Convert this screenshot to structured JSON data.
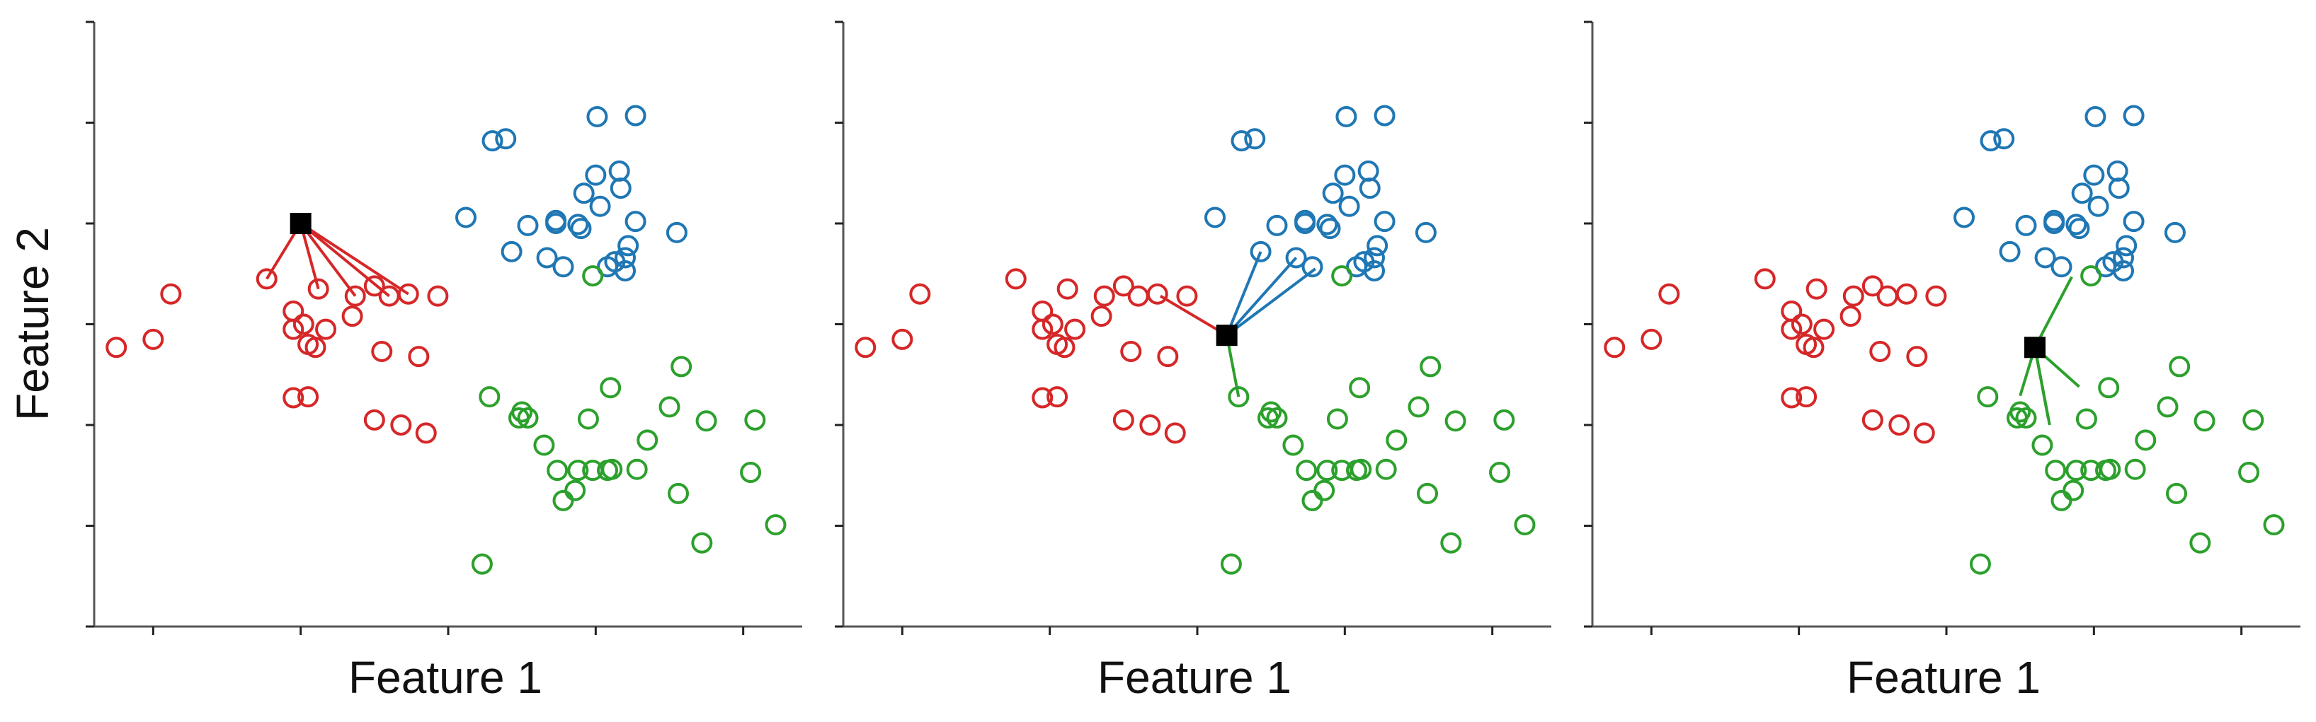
{
  "chart_data": [
    {
      "type": "scatter",
      "panel": 1,
      "xlabel": "Feature 1",
      "ylabel": "Feature 2",
      "xlim": [
        -1.6,
        3.2
      ],
      "ylim": [
        -1.8,
        4.2
      ],
      "xticks": [
        -1.2,
        -0.2,
        0.8,
        1.8,
        2.8
      ],
      "yticks": [
        -1.8,
        -0.8,
        0.2,
        1.2,
        2.2,
        3.2,
        4.2
      ],
      "tick_labels_visible": false,
      "grid": false,
      "colors": {
        "red": "#d62728",
        "blue": "#1f77b4",
        "green": "#2ca02c",
        "query": "#000000"
      },
      "query": {
        "x": -0.2,
        "y": 2.2,
        "marker": "square"
      },
      "neighbors": [
        [
          -0.43,
          1.65
        ],
        [
          -0.08,
          1.55
        ],
        [
          0.17,
          1.48
        ],
        [
          0.4,
          1.48
        ],
        [
          0.53,
          1.5
        ]
      ],
      "neighbor_color": "red"
    },
    {
      "type": "scatter",
      "panel": 2,
      "xlabel": "Feature 1",
      "xlim": [
        -1.6,
        3.2
      ],
      "ylim": [
        -1.8,
        4.2
      ],
      "xticks": [
        -1.2,
        -0.2,
        0.8,
        1.8,
        2.8
      ],
      "yticks": [
        -1.8,
        -0.8,
        0.2,
        1.2,
        2.2,
        3.2,
        4.2
      ],
      "tick_labels_visible": false,
      "grid": false,
      "query": {
        "x": 1.0,
        "y": 1.09,
        "marker": "square"
      },
      "neighbors": [
        [
          0.55,
          1.48
        ],
        [
          1.23,
          1.92
        ],
        [
          1.47,
          1.86
        ],
        [
          1.6,
          1.75
        ],
        [
          1.08,
          0.48
        ]
      ],
      "neighbor_colors": [
        "red",
        "blue",
        "blue",
        "blue",
        "green"
      ]
    },
    {
      "type": "scatter",
      "panel": 3,
      "xlabel": "Feature 1",
      "xlim": [
        -1.6,
        3.2
      ],
      "ylim": [
        -1.8,
        4.2
      ],
      "xticks": [
        -1.2,
        -0.2,
        0.8,
        1.8,
        2.8
      ],
      "yticks": [
        -1.8,
        -0.8,
        0.2,
        1.2,
        2.2,
        3.2,
        4.2
      ],
      "tick_labels_visible": false,
      "grid": false,
      "query": {
        "x": 1.4,
        "y": 0.97,
        "marker": "square"
      },
      "neighbors": [
        [
          1.65,
          1.67
        ],
        [
          1.3,
          0.49
        ],
        [
          1.7,
          0.58
        ],
        [
          1.49,
          0.27
        ],
        [
          1.5,
          0.2
        ]
      ],
      "neighbor_color": "green"
    }
  ],
  "point_sets": {
    "red": [
      [
        -1.45,
        0.97
      ],
      [
        -1.2,
        1.05
      ],
      [
        -1.08,
        1.5
      ],
      [
        -0.43,
        1.65
      ],
      [
        -0.25,
        1.15
      ],
      [
        -0.1,
        0.97
      ],
      [
        -0.18,
        1.2
      ],
      [
        -0.08,
        1.55
      ],
      [
        -0.15,
        1.0
      ],
      [
        -0.25,
        1.33
      ],
      [
        -0.03,
        1.15
      ],
      [
        0.15,
        1.28
      ],
      [
        0.17,
        1.48
      ],
      [
        0.3,
        1.58
      ],
      [
        0.4,
        1.48
      ],
      [
        0.53,
        1.5
      ],
      [
        0.73,
        1.48
      ],
      [
        0.35,
        0.93
      ],
      [
        0.6,
        0.88
      ],
      [
        -0.25,
        0.47
      ],
      [
        -0.15,
        0.48
      ],
      [
        0.3,
        0.25
      ],
      [
        0.48,
        0.2
      ],
      [
        0.65,
        0.12
      ]
    ],
    "blue": [
      [
        0.92,
        2.26
      ],
      [
        1.1,
        3.02
      ],
      [
        1.19,
        3.04
      ],
      [
        1.23,
        1.92
      ],
      [
        1.34,
        2.18
      ],
      [
        1.47,
        1.86
      ],
      [
        1.53,
        2.2
      ],
      [
        1.53,
        2.23
      ],
      [
        1.58,
        1.77
      ],
      [
        1.68,
        2.19
      ],
      [
        1.7,
        2.15
      ],
      [
        1.72,
        2.5
      ],
      [
        1.8,
        2.68
      ],
      [
        1.81,
        3.26
      ],
      [
        1.83,
        2.37
      ],
      [
        1.88,
        1.77
      ],
      [
        1.93,
        1.82
      ],
      [
        1.97,
        2.55
      ],
      [
        1.96,
        2.72
      ],
      [
        2.0,
        1.73
      ],
      [
        2.0,
        1.86
      ],
      [
        2.02,
        1.98
      ],
      [
        2.07,
        2.22
      ],
      [
        2.07,
        3.27
      ],
      [
        2.35,
        2.11
      ]
    ],
    "green": [
      [
        1.78,
        1.68
      ],
      [
        1.08,
        0.48
      ],
      [
        1.28,
        0.27
      ],
      [
        1.3,
        0.33
      ],
      [
        1.34,
        0.27
      ],
      [
        1.45,
        0.0
      ],
      [
        1.54,
        -0.25
      ],
      [
        1.66,
        -0.45
      ],
      [
        1.68,
        -0.25
      ],
      [
        1.78,
        -0.25
      ],
      [
        1.88,
        -0.25
      ],
      [
        1.91,
        -0.24
      ],
      [
        1.75,
        0.26
      ],
      [
        1.9,
        0.57
      ],
      [
        2.15,
        0.05
      ],
      [
        2.3,
        0.38
      ],
      [
        2.38,
        0.78
      ],
      [
        2.36,
        -0.48
      ],
      [
        2.55,
        0.24
      ],
      [
        2.88,
        0.25
      ],
      [
        2.85,
        -0.27
      ],
      [
        2.52,
        -0.97
      ],
      [
        3.02,
        -0.79
      ],
      [
        1.58,
        -0.55
      ],
      [
        2.08,
        -0.24
      ],
      [
        1.03,
        -1.18
      ]
    ]
  }
}
